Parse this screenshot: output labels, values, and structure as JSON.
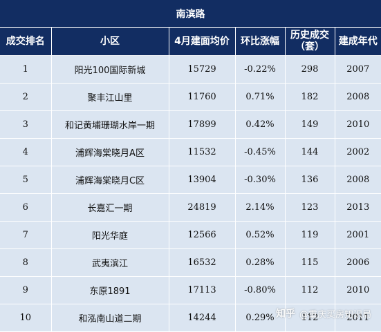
{
  "title": "南滨路",
  "headers": [
    "成交排名",
    "小区",
    "4月建面均价",
    "环比涨幅",
    "历史成交\n（套）",
    "建成年代"
  ],
  "rows": [
    {
      "rank": "1",
      "name": "阳光100国际新城",
      "price": "15729",
      "change": "-0.22%",
      "deals": "298",
      "year": "2007"
    },
    {
      "rank": "2",
      "name": "聚丰江山里",
      "price": "11760",
      "change": "0.71%",
      "deals": "182",
      "year": "2008"
    },
    {
      "rank": "3",
      "name": "和记黄埔珊瑚水岸一期",
      "price": "17899",
      "change": "0.42%",
      "deals": "149",
      "year": "2010"
    },
    {
      "rank": "4",
      "name": "浦辉海棠晓月A区",
      "price": "11532",
      "change": "-0.45%",
      "deals": "144",
      "year": "2002"
    },
    {
      "rank": "5",
      "name": "浦辉海棠晓月C区",
      "price": "13904",
      "change": "-0.30%",
      "deals": "136",
      "year": "2008"
    },
    {
      "rank": "6",
      "name": "长嘉汇一期",
      "price": "24819",
      "change": "2.14%",
      "deals": "123",
      "year": "2013"
    },
    {
      "rank": "7",
      "name": "阳光华庭",
      "price": "12566",
      "change": "0.52%",
      "deals": "119",
      "year": "2001"
    },
    {
      "rank": "8",
      "name": "武夷滨江",
      "price": "16532",
      "change": "0.28%",
      "deals": "115",
      "year": "2006"
    },
    {
      "rank": "9",
      "name": "东原1891",
      "price": "17113",
      "change": "-0.80%",
      "deals": "112",
      "year": "2010"
    },
    {
      "rank": "10",
      "name": "和泓南山道二期",
      "price": "14244",
      "change": "0.29%",
      "deals": "112",
      "year": "2011"
    }
  ],
  "watermark": {
    "site": "知乎",
    "author": "@重庆买房知识局"
  },
  "colors": {
    "header_bg": "#122d62",
    "row_bg": "#dbe5f1",
    "header_text": "#ffffff"
  }
}
